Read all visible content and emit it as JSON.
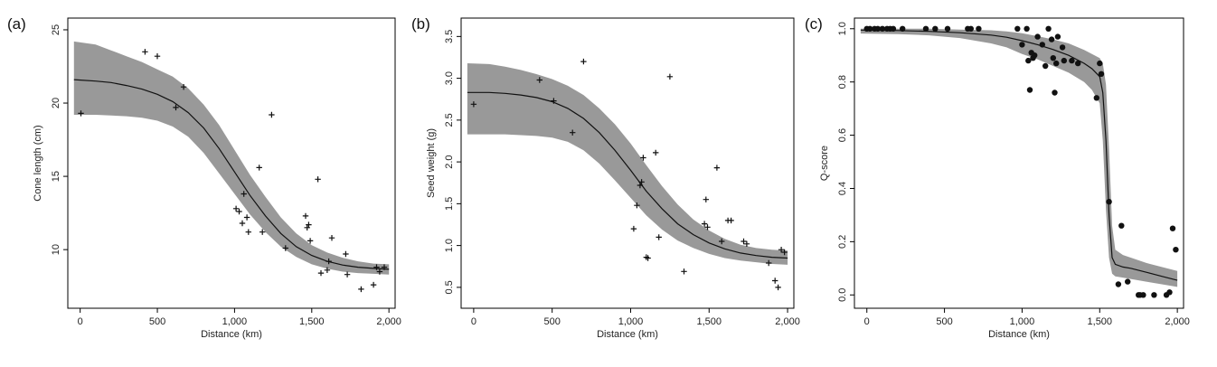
{
  "chart_data": [
    {
      "type": "scatter",
      "panel_label": "(a)",
      "title": "",
      "xlabel": "Distance (km)",
      "ylabel": "Cone length (cm)",
      "xlim": [
        -80,
        2040
      ],
      "ylim": [
        6.0,
        25.8
      ],
      "xticks": [
        0,
        500,
        1000,
        1500,
        2000
      ],
      "xtick_labels": [
        "0",
        "500",
        "1,000",
        "1,500",
        "2,000"
      ],
      "yticks": [
        10,
        15,
        20,
        25
      ],
      "ytick_labels": [
        "10",
        "15",
        "20",
        "25"
      ],
      "marker": "plus",
      "fit_curve": {
        "x": [
          -40,
          100,
          200,
          300,
          400,
          500,
          600,
          700,
          800,
          900,
          1000,
          1100,
          1200,
          1300,
          1400,
          1500,
          1600,
          1700,
          1800,
          1900,
          2000
        ],
        "y": [
          21.6,
          21.5,
          21.4,
          21.2,
          20.95,
          20.6,
          20.1,
          19.35,
          18.3,
          16.9,
          15.3,
          13.7,
          12.3,
          11.1,
          10.2,
          9.6,
          9.2,
          8.95,
          8.8,
          8.72,
          8.66
        ]
      },
      "band": {
        "x": [
          -40,
          100,
          200,
          300,
          400,
          500,
          600,
          700,
          800,
          900,
          1000,
          1100,
          1200,
          1300,
          1400,
          1500,
          1600,
          1700,
          1800,
          1900,
          2000
        ],
        "lower": [
          19.2,
          19.2,
          19.15,
          19.1,
          19.0,
          18.8,
          18.4,
          17.7,
          16.6,
          15.2,
          13.8,
          12.4,
          11.2,
          10.2,
          9.5,
          9.0,
          8.7,
          8.5,
          8.4,
          8.35,
          8.3
        ],
        "upper": [
          24.2,
          24.0,
          23.6,
          23.2,
          22.8,
          22.3,
          21.8,
          21.0,
          19.9,
          18.5,
          16.8,
          15.1,
          13.6,
          12.2,
          11.1,
          10.3,
          9.8,
          9.45,
          9.2,
          9.05,
          9.0
        ]
      },
      "points": {
        "x": [
          5,
          420,
          500,
          620,
          670,
          1010,
          1030,
          1050,
          1060,
          1080,
          1090,
          1160,
          1180,
          1240,
          1330,
          1460,
          1470,
          1480,
          1490,
          1540,
          1560,
          1600,
          1610,
          1630,
          1720,
          1730,
          1820,
          1900,
          1920,
          1940,
          1970
        ],
        "y": [
          19.3,
          23.5,
          23.2,
          19.7,
          21.1,
          12.8,
          12.6,
          11.8,
          13.8,
          12.2,
          11.2,
          15.6,
          11.2,
          19.2,
          10.1,
          12.3,
          11.5,
          11.7,
          10.6,
          14.8,
          8.4,
          8.6,
          9.2,
          10.8,
          9.7,
          8.3,
          7.3,
          7.6,
          8.8,
          8.5,
          8.8
        ]
      }
    },
    {
      "type": "scatter",
      "panel_label": "(b)",
      "title": "",
      "xlabel": "Distance (km)",
      "ylabel": "Seed weight (g)",
      "xlim": [
        -80,
        2040
      ],
      "ylim": [
        0.25,
        3.72
      ],
      "xticks": [
        0,
        500,
        1000,
        1500,
        2000
      ],
      "xtick_labels": [
        "0",
        "500",
        "1,000",
        "1,500",
        "2,000"
      ],
      "yticks": [
        0.5,
        1.0,
        1.5,
        2.0,
        2.5,
        3.0,
        3.5
      ],
      "ytick_labels": [
        "0.5",
        "1.0",
        "1.5",
        "2.0",
        "2.5",
        "3.0",
        "3.5"
      ],
      "marker": "plus",
      "fit_curve": {
        "x": [
          -40,
          100,
          200,
          300,
          400,
          500,
          600,
          700,
          800,
          900,
          1000,
          1100,
          1200,
          1300,
          1400,
          1500,
          1600,
          1700,
          1800,
          1900,
          2000
        ],
        "y": [
          2.83,
          2.83,
          2.82,
          2.8,
          2.77,
          2.72,
          2.64,
          2.52,
          2.35,
          2.14,
          1.9,
          1.65,
          1.44,
          1.26,
          1.13,
          1.03,
          0.96,
          0.91,
          0.88,
          0.86,
          0.85
        ]
      },
      "band": {
        "x": [
          -40,
          100,
          200,
          300,
          400,
          500,
          600,
          700,
          800,
          900,
          1000,
          1100,
          1200,
          1300,
          1400,
          1500,
          1600,
          1700,
          1800,
          1900,
          2000
        ],
        "lower": [
          2.33,
          2.33,
          2.33,
          2.32,
          2.31,
          2.29,
          2.24,
          2.14,
          1.98,
          1.78,
          1.57,
          1.36,
          1.19,
          1.06,
          0.97,
          0.9,
          0.85,
          0.82,
          0.8,
          0.78,
          0.77
        ],
        "upper": [
          3.18,
          3.17,
          3.14,
          3.1,
          3.05,
          2.99,
          2.91,
          2.8,
          2.64,
          2.45,
          2.22,
          1.96,
          1.71,
          1.49,
          1.31,
          1.18,
          1.08,
          1.01,
          0.97,
          0.95,
          0.94
        ]
      },
      "points": {
        "x": [
          0,
          420,
          510,
          630,
          700,
          1020,
          1040,
          1060,
          1070,
          1080,
          1100,
          1110,
          1160,
          1180,
          1250,
          1340,
          1470,
          1480,
          1490,
          1550,
          1580,
          1620,
          1640,
          1720,
          1740,
          1880,
          1920,
          1940,
          1960,
          1980
        ],
        "y": [
          2.69,
          2.98,
          2.73,
          2.35,
          3.2,
          1.2,
          1.48,
          1.72,
          1.76,
          2.05,
          0.86,
          0.85,
          2.11,
          1.1,
          3.02,
          0.69,
          1.26,
          1.55,
          1.22,
          1.93,
          1.05,
          1.3,
          1.3,
          1.05,
          1.02,
          0.79,
          0.58,
          0.5,
          0.95,
          0.92
        ]
      }
    },
    {
      "type": "scatter",
      "panel_label": "(c)",
      "title": "",
      "xlabel": "Distance (km)",
      "ylabel": "Q-score",
      "xlim": [
        -80,
        2040
      ],
      "ylim": [
        -0.05,
        1.04
      ],
      "xticks": [
        0,
        500,
        1000,
        1500,
        2000
      ],
      "xtick_labels": [
        "0",
        "500",
        "1,000",
        "1,500",
        "2,000"
      ],
      "yticks": [
        0.0,
        0.2,
        0.4,
        0.6,
        0.8,
        1.0
      ],
      "ytick_labels": [
        "0.0",
        "0.2",
        "0.4",
        "0.6",
        "0.8",
        "1.0"
      ],
      "marker": "dot",
      "fit_curve": {
        "x": [
          -40,
          200,
          400,
          600,
          800,
          900,
          1000,
          1100,
          1200,
          1300,
          1400,
          1450,
          1500,
          1520,
          1540,
          1560,
          1580,
          1600,
          1650,
          1700,
          1800,
          1900,
          2000
        ],
        "y": [
          0.995,
          0.993,
          0.99,
          0.985,
          0.976,
          0.968,
          0.955,
          0.94,
          0.922,
          0.9,
          0.87,
          0.85,
          0.82,
          0.76,
          0.58,
          0.3,
          0.14,
          0.115,
          0.105,
          0.1,
          0.085,
          0.07,
          0.055
        ]
      },
      "band": {
        "x": [
          -40,
          200,
          400,
          600,
          800,
          900,
          1000,
          1100,
          1200,
          1300,
          1400,
          1450,
          1500,
          1520,
          1540,
          1560,
          1580,
          1600,
          1650,
          1700,
          1800,
          1900,
          2000
        ],
        "lower": [
          0.982,
          0.98,
          0.975,
          0.965,
          0.945,
          0.93,
          0.905,
          0.885,
          0.86,
          0.835,
          0.8,
          0.77,
          0.72,
          0.58,
          0.32,
          0.14,
          0.08,
          0.07,
          0.065,
          0.06,
          0.05,
          0.04,
          0.03
        ],
        "upper": [
          1.0,
          1.0,
          1.0,
          0.997,
          0.994,
          0.99,
          0.983,
          0.972,
          0.96,
          0.945,
          0.92,
          0.905,
          0.89,
          0.87,
          0.79,
          0.55,
          0.26,
          0.17,
          0.15,
          0.14,
          0.12,
          0.105,
          0.09
        ]
      },
      "points": {
        "x": [
          0,
          20,
          50,
          70,
          100,
          130,
          150,
          170,
          230,
          380,
          440,
          520,
          650,
          670,
          720,
          970,
          1000,
          1030,
          1040,
          1050,
          1060,
          1070,
          1080,
          1100,
          1130,
          1150,
          1170,
          1190,
          1200,
          1210,
          1220,
          1230,
          1260,
          1270,
          1320,
          1360,
          1480,
          1500,
          1510,
          1560,
          1620,
          1640,
          1680,
          1750,
          1760,
          1780,
          1850,
          1930,
          1950,
          1970,
          1990
        ],
        "y": [
          1.0,
          1.0,
          1.0,
          1.0,
          1.0,
          1.0,
          1.0,
          1.0,
          1.0,
          1.0,
          1.0,
          1.0,
          1.0,
          1.0,
          1.0,
          1.0,
          0.94,
          1.0,
          0.88,
          0.77,
          0.91,
          0.89,
          0.9,
          0.97,
          0.94,
          0.86,
          1.0,
          0.96,
          0.89,
          0.76,
          0.87,
          0.97,
          0.93,
          0.88,
          0.88,
          0.87,
          0.74,
          0.87,
          0.83,
          0.35,
          0.04,
          0.26,
          0.05,
          0.0,
          0.0,
          0.0,
          0.0,
          0.0,
          0.01,
          0.25,
          0.17
        ]
      }
    }
  ]
}
